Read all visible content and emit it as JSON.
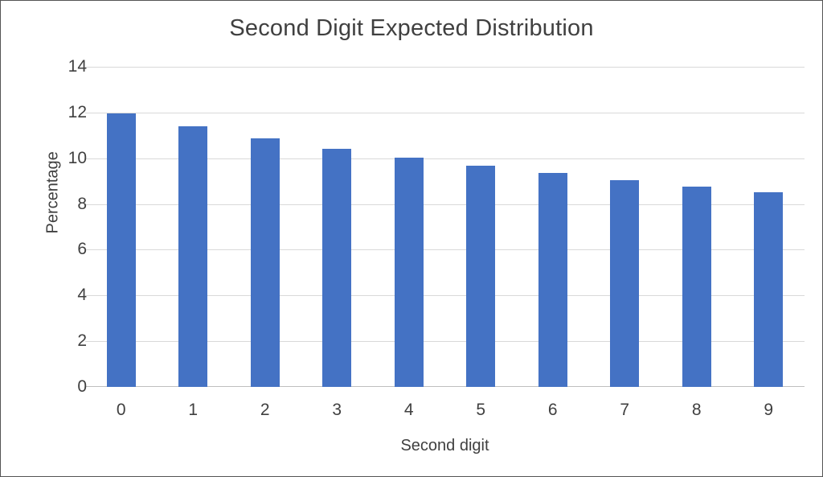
{
  "chart_data": {
    "type": "bar",
    "title": "Second Digit Expected Distribution",
    "xlabel": "Second digit",
    "ylabel": "Percentage",
    "categories": [
      "0",
      "1",
      "2",
      "3",
      "4",
      "5",
      "6",
      "7",
      "8",
      "9"
    ],
    "values": [
      11.97,
      11.39,
      10.88,
      10.43,
      10.03,
      9.67,
      9.34,
      9.03,
      8.76,
      8.5
    ],
    "ylim": [
      0,
      14
    ],
    "yticks": [
      0,
      2,
      4,
      6,
      8,
      10,
      12,
      14
    ],
    "grid": true,
    "legend": "none",
    "bar_color": "#4472C4",
    "gridline_color": "#D9D9D9",
    "axis_line_color": "#BFBFBF",
    "text_color": "#404040"
  }
}
